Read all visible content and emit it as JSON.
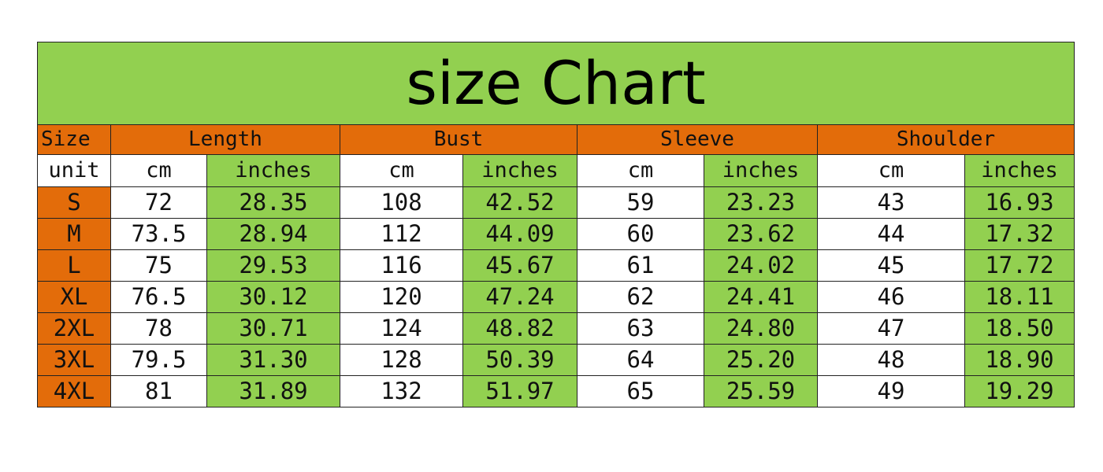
{
  "title": "size Chart",
  "header": {
    "size": "Size",
    "groups": [
      "Length",
      "Bust",
      "Sleeve",
      "Shoulder"
    ]
  },
  "units": {
    "label": "unit",
    "cm": "cm",
    "inches": "inches"
  },
  "rows": [
    {
      "size": "S",
      "length_cm": "72",
      "length_in": "28.35",
      "bust_cm": "108",
      "bust_in": "42.52",
      "sleeve_cm": "59",
      "sleeve_in": "23.23",
      "shoulder_cm": "43",
      "shoulder_in": "16.93"
    },
    {
      "size": "M",
      "length_cm": "73.5",
      "length_in": "28.94",
      "bust_cm": "112",
      "bust_in": "44.09",
      "sleeve_cm": "60",
      "sleeve_in": "23.62",
      "shoulder_cm": "44",
      "shoulder_in": "17.32"
    },
    {
      "size": "L",
      "length_cm": "75",
      "length_in": "29.53",
      "bust_cm": "116",
      "bust_in": "45.67",
      "sleeve_cm": "61",
      "sleeve_in": "24.02",
      "shoulder_cm": "45",
      "shoulder_in": "17.72"
    },
    {
      "size": "XL",
      "length_cm": "76.5",
      "length_in": "30.12",
      "bust_cm": "120",
      "bust_in": "47.24",
      "sleeve_cm": "62",
      "sleeve_in": "24.41",
      "shoulder_cm": "46",
      "shoulder_in": "18.11"
    },
    {
      "size": "2XL",
      "length_cm": "78",
      "length_in": "30.71",
      "bust_cm": "124",
      "bust_in": "48.82",
      "sleeve_cm": "63",
      "sleeve_in": "24.80",
      "shoulder_cm": "47",
      "shoulder_in": "18.50"
    },
    {
      "size": "3XL",
      "length_cm": "79.5",
      "length_in": "31.30",
      "bust_cm": "128",
      "bust_in": "50.39",
      "sleeve_cm": "64",
      "sleeve_in": "25.20",
      "shoulder_cm": "48",
      "shoulder_in": "18.90"
    },
    {
      "size": "4XL",
      "length_cm": "81",
      "length_in": "31.89",
      "bust_cm": "132",
      "bust_in": "51.97",
      "sleeve_cm": "65",
      "sleeve_in": "25.59",
      "shoulder_cm": "49",
      "shoulder_in": "19.29"
    }
  ],
  "colors": {
    "title_bg": "#92d050",
    "header_bg": "#e36c0a",
    "inches_bg": "#92d050",
    "cm_bg": "#ffffff"
  }
}
